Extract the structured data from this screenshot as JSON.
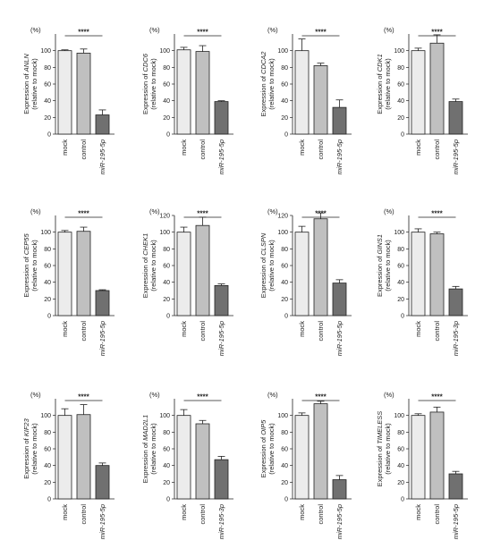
{
  "figure": {
    "unit_label": "(%)",
    "ylabel_suffix": "(relative to mock)",
    "categories": [
      "mock",
      "control",
      "miR-195-5p"
    ],
    "bar_colors": [
      "#ececec",
      "#c0c0c0",
      "#707070"
    ]
  },
  "chart_data": [
    {
      "type": "bar",
      "ylabel_prefix": "Expression of",
      "gene": "ANLN",
      "categories": [
        "mock",
        "control",
        "miR-195-5p"
      ],
      "values": [
        100,
        97,
        23
      ],
      "errors": [
        1,
        5,
        6
      ],
      "ylim": [
        0,
        120
      ],
      "yticks": [
        0,
        20,
        40,
        60,
        80,
        100
      ],
      "significance": "****",
      "sig_from": 0,
      "sig_to": 2
    },
    {
      "type": "bar",
      "ylabel_prefix": "Expression of",
      "gene": "CDC6",
      "categories": [
        "mock",
        "control",
        "miR-195-5p"
      ],
      "values": [
        101,
        99,
        39
      ],
      "errors": [
        3,
        7,
        1
      ],
      "ylim": [
        0,
        120
      ],
      "yticks": [
        0,
        20,
        40,
        60,
        80,
        100
      ],
      "significance": "****",
      "sig_from": 0,
      "sig_to": 2
    },
    {
      "type": "bar",
      "ylabel_prefix": "Expression of",
      "gene": "CDCA2",
      "categories": [
        "mock",
        "control",
        "miR-195-5p"
      ],
      "values": [
        100,
        82,
        32
      ],
      "errors": [
        14,
        3,
        9
      ],
      "ylim": [
        0,
        120
      ],
      "yticks": [
        0,
        20,
        40,
        60,
        80,
        100
      ],
      "significance": "****",
      "sig_from": 0,
      "sig_to": 2
    },
    {
      "type": "bar",
      "ylabel_prefix": "Expression of",
      "gene": "CDK1",
      "categories": [
        "mock",
        "control",
        "miR-195-5p"
      ],
      "values": [
        100,
        109,
        39
      ],
      "errors": [
        3,
        10,
        3
      ],
      "ylim": [
        0,
        120
      ],
      "yticks": [
        0,
        20,
        40,
        60,
        80,
        100
      ],
      "significance": "****",
      "sig_from": 0,
      "sig_to": 2
    },
    {
      "type": "bar",
      "ylabel_prefix": "Expression of",
      "gene": "CEP55",
      "categories": [
        "mock",
        "control",
        "miR-195-5p"
      ],
      "values": [
        100,
        101,
        30
      ],
      "errors": [
        2,
        5,
        1
      ],
      "ylim": [
        0,
        120
      ],
      "yticks": [
        0,
        20,
        40,
        60,
        80,
        100
      ],
      "significance": "****",
      "sig_from": 0,
      "sig_to": 2
    },
    {
      "type": "bar",
      "ylabel_prefix": "Expression of",
      "gene": "CHEK1",
      "categories": [
        "mock",
        "control",
        "miR-195-5p"
      ],
      "values": [
        100,
        108,
        36
      ],
      "errors": [
        6,
        10,
        2
      ],
      "ylim": [
        0,
        120
      ],
      "yticks": [
        0,
        20,
        40,
        60,
        80,
        100,
        120
      ],
      "significance": "****",
      "sig_from": 0,
      "sig_to": 2
    },
    {
      "type": "bar",
      "ylabel_prefix": "Expression of",
      "gene": "CLSPN",
      "categories": [
        "mock",
        "control",
        "miR-195-5p"
      ],
      "values": [
        100,
        116,
        39
      ],
      "errors": [
        7,
        7,
        4
      ],
      "ylim": [
        0,
        120
      ],
      "yticks": [
        0,
        20,
        40,
        60,
        80,
        100,
        120
      ],
      "significance": "****",
      "sig_from": 0,
      "sig_to": 2
    },
    {
      "type": "bar",
      "ylabel_prefix": "Expression of",
      "gene": "GINS1",
      "categories": [
        "mock",
        "control",
        "miR-195-3p"
      ],
      "values": [
        100,
        98,
        32
      ],
      "errors": [
        4,
        2,
        3
      ],
      "ylim": [
        0,
        120
      ],
      "yticks": [
        0,
        20,
        40,
        60,
        80,
        100
      ],
      "significance": "****",
      "sig_from": 0,
      "sig_to": 2
    },
    {
      "type": "bar",
      "ylabel_prefix": "Expression of",
      "gene": "KIF23",
      "categories": [
        "mock",
        "control",
        "miR-195-5p"
      ],
      "values": [
        100,
        101,
        40
      ],
      "errors": [
        8,
        12,
        3
      ],
      "ylim": [
        0,
        120
      ],
      "yticks": [
        0,
        20,
        40,
        60,
        80,
        100
      ],
      "significance": "****",
      "sig_from": 0,
      "sig_to": 2
    },
    {
      "type": "bar",
      "ylabel_prefix": "Expression of",
      "gene": "MAD2L1",
      "categories": [
        "mock",
        "control",
        "miR-195-3p"
      ],
      "values": [
        100,
        90,
        47
      ],
      "errors": [
        7,
        4,
        4
      ],
      "ylim": [
        0,
        120
      ],
      "yticks": [
        0,
        20,
        40,
        60,
        80,
        100
      ],
      "significance": "****",
      "sig_from": 0,
      "sig_to": 2
    },
    {
      "type": "bar",
      "ylabel_prefix": "Expression of",
      "gene": "OIP5",
      "categories": [
        "mock",
        "control",
        "miR-195-5p"
      ],
      "values": [
        100,
        114,
        23
      ],
      "errors": [
        3,
        3,
        5
      ],
      "ylim": [
        0,
        120
      ],
      "yticks": [
        0,
        20,
        40,
        60,
        80,
        100
      ],
      "significance": "****",
      "sig_from": 0,
      "sig_to": 2
    },
    {
      "type": "bar",
      "ylabel_prefix": "Expression of",
      "gene": "TIMELESS",
      "categories": [
        "mock",
        "control",
        "miR-195-5p"
      ],
      "values": [
        100,
        104,
        30
      ],
      "errors": [
        2,
        6,
        3
      ],
      "ylim": [
        0,
        120
      ],
      "yticks": [
        0,
        20,
        40,
        60,
        80,
        100
      ],
      "significance": "****",
      "sig_from": 0,
      "sig_to": 2
    }
  ]
}
